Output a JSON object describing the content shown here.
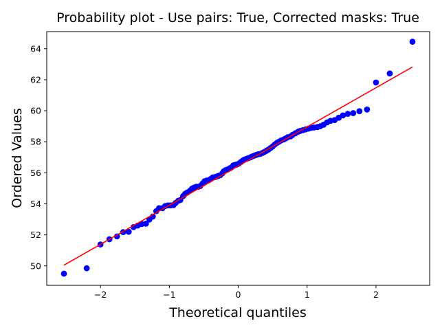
{
  "chart_data": {
    "type": "scatter",
    "title": "Probability plot - Use pairs: True, Corrected masks: True",
    "xlabel": "Theoretical quantiles",
    "ylabel": "Ordered Values",
    "xlim": [
      -2.78,
      2.78
    ],
    "ylim": [
      48.75,
      65.1
    ],
    "xticks": [
      -2,
      -1,
      0,
      1,
      2
    ],
    "yticks": [
      50,
      52,
      54,
      56,
      58,
      60,
      62,
      64
    ],
    "xtick_labels": [
      "−2",
      "−1",
      "0",
      "1",
      "2"
    ],
    "ytick_labels": [
      "50",
      "52",
      "54",
      "56",
      "58",
      "60",
      "62",
      "64"
    ],
    "grid": false,
    "legend": "none",
    "colors": {
      "points": "#0000ff",
      "fit_line": "#ff0000"
    },
    "series": [
      {
        "type": "scatter",
        "points": [
          [
            -2.53,
            49.5
          ],
          [
            -2.2,
            49.85
          ],
          [
            -2.0,
            51.38
          ],
          [
            -1.87,
            51.72
          ],
          [
            -1.76,
            51.9
          ],
          [
            -1.67,
            52.18
          ],
          [
            -1.59,
            52.2
          ],
          [
            -1.52,
            52.5
          ],
          [
            -1.46,
            52.6
          ],
          [
            -1.4,
            52.7
          ],
          [
            -1.34,
            52.72
          ],
          [
            -1.29,
            52.99
          ],
          [
            -1.24,
            53.18
          ],
          [
            -1.19,
            53.53
          ],
          [
            -1.15,
            53.72
          ],
          [
            -1.1,
            53.72
          ],
          [
            -1.06,
            53.86
          ],
          [
            -1.02,
            53.9
          ],
          [
            -0.98,
            53.9
          ],
          [
            -0.94,
            53.92
          ],
          [
            -0.91,
            54.05
          ],
          [
            -0.87,
            54.2
          ],
          [
            -0.84,
            54.25
          ],
          [
            -0.8,
            54.5
          ],
          [
            -0.77,
            54.65
          ],
          [
            -0.74,
            54.73
          ],
          [
            -0.7,
            54.85
          ],
          [
            -0.67,
            54.98
          ],
          [
            -0.64,
            55.05
          ],
          [
            -0.61,
            55.1
          ],
          [
            -0.58,
            55.1
          ],
          [
            -0.55,
            55.15
          ],
          [
            -0.52,
            55.3
          ],
          [
            -0.49,
            55.45
          ],
          [
            -0.46,
            55.5
          ],
          [
            -0.43,
            55.52
          ],
          [
            -0.4,
            55.6
          ],
          [
            -0.37,
            55.7
          ],
          [
            -0.34,
            55.72
          ],
          [
            -0.32,
            55.75
          ],
          [
            -0.29,
            55.8
          ],
          [
            -0.26,
            55.85
          ],
          [
            -0.23,
            55.97
          ],
          [
            -0.21,
            56.1
          ],
          [
            -0.18,
            56.18
          ],
          [
            -0.15,
            56.22
          ],
          [
            -0.12,
            56.3
          ],
          [
            -0.1,
            56.35
          ],
          [
            -0.07,
            56.48
          ],
          [
            -0.04,
            56.52
          ],
          [
            -0.02,
            56.53
          ],
          [
            0.01,
            56.6
          ],
          [
            0.04,
            56.7
          ],
          [
            0.07,
            56.8
          ],
          [
            0.09,
            56.85
          ],
          [
            0.12,
            56.9
          ],
          [
            0.15,
            56.95
          ],
          [
            0.18,
            57.0
          ],
          [
            0.2,
            57.05
          ],
          [
            0.23,
            57.1
          ],
          [
            0.26,
            57.15
          ],
          [
            0.29,
            57.2
          ],
          [
            0.32,
            57.22
          ],
          [
            0.35,
            57.28
          ],
          [
            0.38,
            57.35
          ],
          [
            0.41,
            57.42
          ],
          [
            0.44,
            57.5
          ],
          [
            0.47,
            57.6
          ],
          [
            0.5,
            57.7
          ],
          [
            0.53,
            57.82
          ],
          [
            0.56,
            57.92
          ],
          [
            0.59,
            58.0
          ],
          [
            0.62,
            58.08
          ],
          [
            0.66,
            58.15
          ],
          [
            0.69,
            58.22
          ],
          [
            0.72,
            58.3
          ],
          [
            0.76,
            58.35
          ],
          [
            0.79,
            58.45
          ],
          [
            0.83,
            58.55
          ],
          [
            0.87,
            58.65
          ],
          [
            0.9,
            58.7
          ],
          [
            0.94,
            58.75
          ],
          [
            0.98,
            58.8
          ],
          [
            1.02,
            58.85
          ],
          [
            1.06,
            58.9
          ],
          [
            1.1,
            58.92
          ],
          [
            1.15,
            58.95
          ],
          [
            1.19,
            59.0
          ],
          [
            1.24,
            59.1
          ],
          [
            1.29,
            59.25
          ],
          [
            1.34,
            59.35
          ],
          [
            1.4,
            59.4
          ],
          [
            1.46,
            59.55
          ],
          [
            1.52,
            59.7
          ],
          [
            1.59,
            59.8
          ],
          [
            1.67,
            59.85
          ],
          [
            1.76,
            59.97
          ],
          [
            1.87,
            60.08
          ],
          [
            2.0,
            61.82
          ],
          [
            2.2,
            62.4
          ],
          [
            2.53,
            64.45
          ]
        ]
      },
      {
        "type": "line",
        "points": [
          [
            -2.53,
            50.05
          ],
          [
            2.53,
            62.82
          ]
        ]
      }
    ]
  }
}
